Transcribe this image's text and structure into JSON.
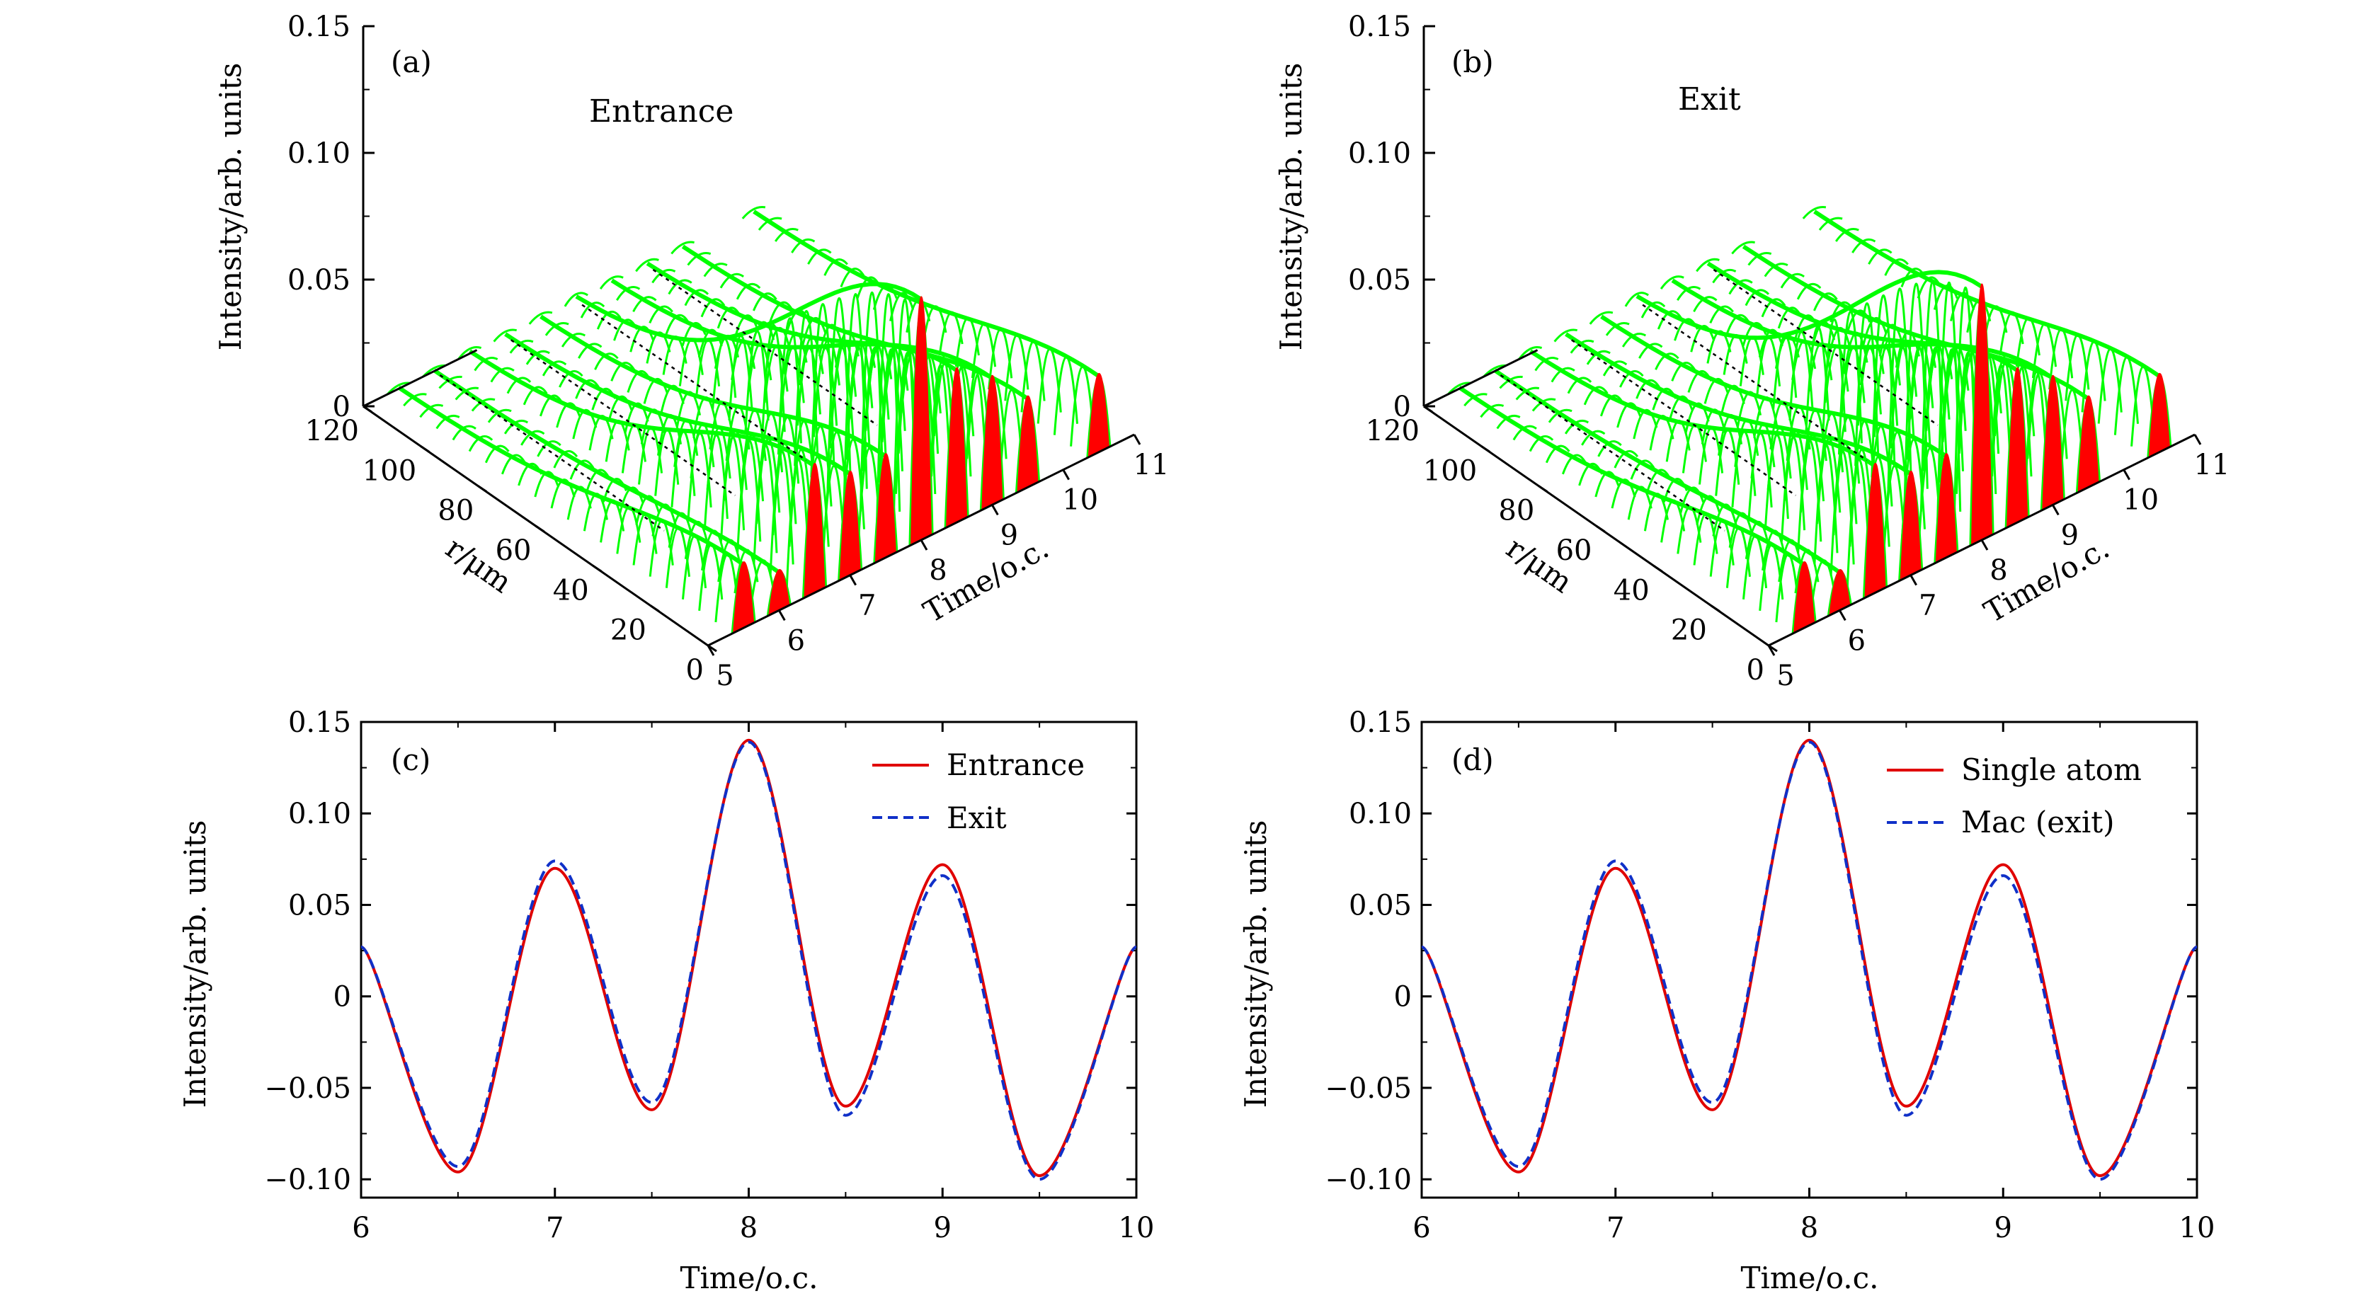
{
  "figure": {
    "colors": {
      "mesh": "#00ff00",
      "peak": "#ff0000",
      "line_a": "#e00000",
      "line_b": "#1030c8",
      "axis": "#000000"
    }
  },
  "chart_data": [
    {
      "panel": "a",
      "type": "surface3d",
      "label": "(a)",
      "annotation": "Entrance",
      "z_axis": {
        "title": "Intensity/arb. units",
        "ticks": [
          "0",
          "0.05",
          "0.10",
          "0.15"
        ],
        "range": [
          0,
          0.15
        ]
      },
      "r_axis": {
        "title": "r/μm",
        "ticks": [
          "0",
          "20",
          "40",
          "60",
          "80",
          "100",
          "120"
        ],
        "range": [
          0,
          120
        ]
      },
      "t_axis": {
        "title": "Time/o.c.",
        "ticks": [
          "5",
          "6",
          "7",
          "8",
          "9",
          "10",
          "11"
        ],
        "range": [
          5,
          11
        ]
      },
      "peaks": [
        {
          "time": 5.5,
          "value": 0.025
        },
        {
          "time": 6.0,
          "value": 0.015
        },
        {
          "time": 6.5,
          "value": 0.05
        },
        {
          "time": 7.0,
          "value": 0.04
        },
        {
          "time": 7.5,
          "value": 0.04
        },
        {
          "time": 8.0,
          "value": 0.095
        },
        {
          "time": 8.5,
          "value": 0.06
        },
        {
          "time": 9.0,
          "value": 0.05
        },
        {
          "time": 9.5,
          "value": 0.035
        },
        {
          "time": 10.5,
          "value": 0.03
        }
      ]
    },
    {
      "panel": "b",
      "type": "surface3d",
      "label": "(b)",
      "annotation": "Exit",
      "z_axis": {
        "title": "Intensity/arb. units",
        "ticks": [
          "0",
          "0.05",
          "0.10",
          "0.15"
        ],
        "range": [
          0,
          0.15
        ]
      },
      "r_axis": {
        "title": "r/μm",
        "ticks": [
          "0",
          "20",
          "40",
          "60",
          "80",
          "100",
          "120"
        ],
        "range": [
          0,
          120
        ]
      },
      "t_axis": {
        "title": "Time/o.c.",
        "ticks": [
          "5",
          "6",
          "7",
          "8",
          "9",
          "10",
          "11"
        ],
        "range": [
          5,
          11
        ]
      },
      "peaks": [
        {
          "time": 5.5,
          "value": 0.025
        },
        {
          "time": 6.0,
          "value": 0.015
        },
        {
          "time": 6.5,
          "value": 0.05
        },
        {
          "time": 7.0,
          "value": 0.04
        },
        {
          "time": 7.5,
          "value": 0.04
        },
        {
          "time": 8.0,
          "value": 0.1
        },
        {
          "time": 8.5,
          "value": 0.06
        },
        {
          "time": 9.0,
          "value": 0.05
        },
        {
          "time": 9.5,
          "value": 0.035
        },
        {
          "time": 10.5,
          "value": 0.03
        }
      ]
    },
    {
      "panel": "c",
      "type": "line",
      "label": "(c)",
      "xlabel": "Time/o.c.",
      "ylabel": "Intensity/arb. units",
      "xlim": [
        6,
        10
      ],
      "ylim": [
        -0.11,
        0.15
      ],
      "xticks": [
        "6",
        "7",
        "8",
        "9",
        "10"
      ],
      "yticks": [
        "−0.10",
        "−0.05",
        "0",
        "0.05",
        "0.10",
        "0.15"
      ],
      "ytick_values": [
        -0.1,
        -0.05,
        0,
        0.05,
        0.1,
        0.15
      ],
      "legend_position": "top-right",
      "series": [
        {
          "name": "Entrance",
          "style": "solid",
          "x": [
            6.0,
            6.5,
            7.0,
            7.5,
            8.0,
            8.5,
            9.0,
            9.5,
            10.0
          ],
          "y": [
            0.027,
            -0.096,
            0.07,
            -0.062,
            0.14,
            -0.06,
            0.072,
            -0.098,
            0.027
          ]
        },
        {
          "name": "Exit",
          "style": "dashed",
          "x": [
            6.0,
            6.5,
            7.0,
            7.5,
            8.0,
            8.5,
            9.0,
            9.5,
            10.0
          ],
          "y": [
            0.027,
            -0.093,
            0.074,
            -0.058,
            0.139,
            -0.065,
            0.066,
            -0.1,
            0.027
          ]
        }
      ]
    },
    {
      "panel": "d",
      "type": "line",
      "label": "(d)",
      "xlabel": "Time/o.c.",
      "ylabel": "Intensity/arb. units",
      "xlim": [
        6,
        10
      ],
      "ylim": [
        -0.11,
        0.15
      ],
      "xticks": [
        "6",
        "7",
        "8",
        "9",
        "10"
      ],
      "yticks": [
        "−0.10",
        "−0.05",
        "0",
        "0.05",
        "0.10",
        "0.15"
      ],
      "ytick_values": [
        -0.1,
        -0.05,
        0,
        0.05,
        0.1,
        0.15
      ],
      "legend_position": "top-right",
      "series": [
        {
          "name": "Single atom",
          "style": "solid",
          "x": [
            6.0,
            6.5,
            7.0,
            7.5,
            8.0,
            8.5,
            9.0,
            9.5,
            10.0
          ],
          "y": [
            0.027,
            -0.096,
            0.07,
            -0.062,
            0.14,
            -0.06,
            0.072,
            -0.098,
            0.027
          ]
        },
        {
          "name": "Mac (exit)",
          "style": "dashed",
          "x": [
            6.0,
            6.5,
            7.0,
            7.5,
            8.0,
            8.5,
            9.0,
            9.5,
            10.0
          ],
          "y": [
            0.027,
            -0.093,
            0.074,
            -0.058,
            0.139,
            -0.065,
            0.066,
            -0.1,
            0.027
          ]
        }
      ]
    }
  ]
}
